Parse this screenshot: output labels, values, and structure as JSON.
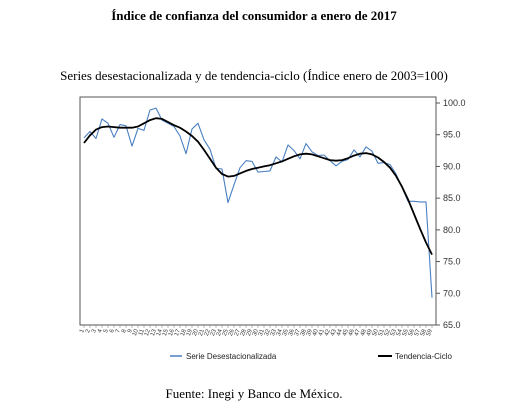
{
  "title": "Índice de confianza del consumidor a enero de 2017",
  "subtitle": "Series desestacionalizada y de tendencia-ciclo (Índice enero de 2003=100)",
  "source": "Fuente: Inegi y Banco de México.",
  "colors": {
    "seasonal": "#4a7fc1",
    "trend": "#000000",
    "frame": "#555555"
  },
  "chart_data": {
    "type": "line",
    "ylim": [
      65,
      100
    ],
    "yticks": [
      "65.0",
      "70.0",
      "75.0",
      "80.0",
      "85.0",
      "90.0",
      "95.0",
      "100.0"
    ],
    "yaxis_position": "right",
    "grid": false,
    "legend": "bottom",
    "x": [
      1,
      2,
      3,
      4,
      5,
      6,
      7,
      8,
      9,
      10,
      11,
      12,
      13,
      14,
      15,
      16,
      17,
      18,
      19,
      20,
      21,
      22,
      23,
      24,
      25,
      26,
      27,
      28,
      29,
      30,
      31,
      32,
      33,
      34,
      35,
      36,
      37,
      38,
      39,
      40,
      41,
      42,
      43,
      44,
      45,
      46,
      47,
      48,
      49,
      50,
      51,
      52,
      53,
      54,
      55,
      56,
      57,
      58,
      59
    ],
    "series": [
      {
        "name": "Serie Desestacionalizada",
        "color": "#4a7fc1",
        "values": [
          94.5,
          95.5,
          94.4,
          97.5,
          96.8,
          94.6,
          96.6,
          96.4,
          93.2,
          96.0,
          95.7,
          98.9,
          99.2,
          97.3,
          96.8,
          96.3,
          94.8,
          92.0,
          95.9,
          96.8,
          94.2,
          92.7,
          89.7,
          89.6,
          84.3,
          87.1,
          89.8,
          90.9,
          90.8,
          89.1,
          89.2,
          89.3,
          91.5,
          90.7,
          93.4,
          92.5,
          91.2,
          93.6,
          92.3,
          91.7,
          91.8,
          90.9,
          90.1,
          90.8,
          91.1,
          92.6,
          91.5,
          93.1,
          92.4,
          90.5,
          90.6,
          90.3,
          88.8,
          86.7,
          84.5,
          84.5,
          84.4,
          84.4,
          69.3
        ]
      },
      {
        "name": "Tendencia-Ciclo",
        "color": "#000000",
        "values": [
          93.7,
          94.9,
          95.8,
          96.2,
          96.3,
          96.2,
          96.1,
          96.1,
          96.1,
          96.3,
          96.8,
          97.3,
          97.6,
          97.5,
          97.0,
          96.5,
          96.1,
          95.5,
          94.8,
          93.9,
          92.6,
          91.2,
          89.8,
          88.8,
          88.4,
          88.5,
          88.9,
          89.3,
          89.6,
          89.8,
          90.0,
          90.2,
          90.5,
          90.8,
          91.2,
          91.6,
          91.9,
          92.0,
          91.9,
          91.6,
          91.3,
          91.0,
          90.9,
          91.0,
          91.3,
          91.7,
          92.0,
          92.1,
          91.9,
          91.4,
          90.7,
          89.8,
          88.5,
          86.8,
          84.8,
          82.5,
          80.2,
          78.0,
          76.1
        ]
      }
    ]
  }
}
